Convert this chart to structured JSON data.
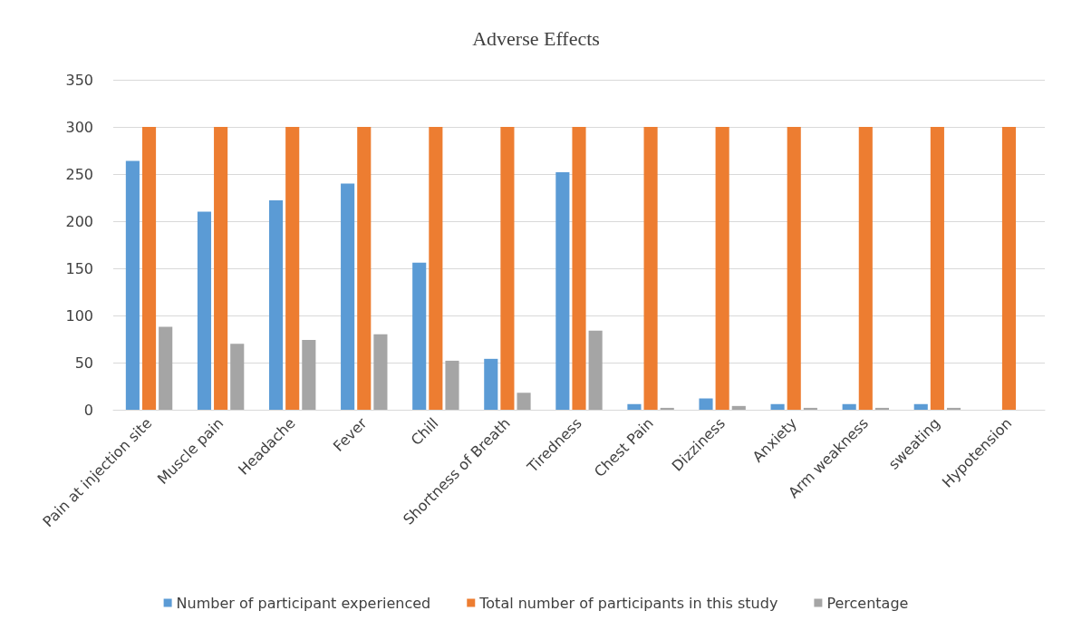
{
  "chart_data": {
    "type": "bar",
    "title": "Adverse Effects",
    "categories": [
      "Pain at injection site",
      "Muscle pain",
      "Headache",
      "Fever",
      "Chill",
      "Shortness of Breath",
      "Tiredness",
      "Chest Pain",
      "Dizziness",
      "Anxiety",
      "Arm weakness",
      "sweating",
      "Hypotension"
    ],
    "series": [
      {
        "name": "Number of participant experienced",
        "color": "#5b9bd5",
        "values": [
          264,
          210,
          222,
          240,
          156,
          54,
          252,
          6,
          12,
          6,
          6,
          6,
          0
        ]
      },
      {
        "name": "Total number of participants in this study",
        "color": "#ed7d31",
        "values": [
          300,
          300,
          300,
          300,
          300,
          300,
          300,
          300,
          300,
          300,
          300,
          300,
          300
        ]
      },
      {
        "name": "Percentage",
        "color": "#a5a5a5",
        "values": [
          88,
          70,
          74,
          80,
          52,
          18,
          84,
          2,
          4,
          2,
          2,
          2,
          0
        ]
      }
    ],
    "ylim": [
      0,
      350
    ],
    "yticks": [
      0,
      50,
      100,
      150,
      200,
      250,
      300,
      350
    ],
    "grid": "y",
    "legend": "bottom"
  }
}
